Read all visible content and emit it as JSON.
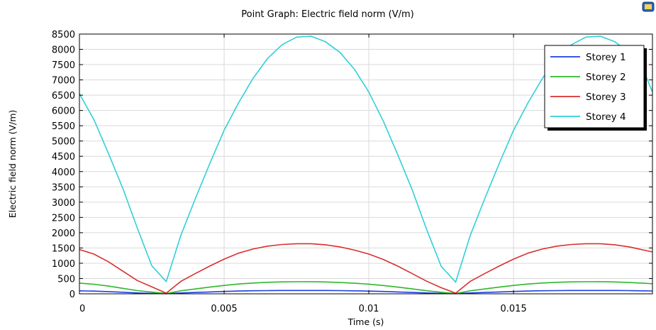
{
  "chart_data": {
    "type": "line",
    "title": "Point Graph: Electric field norm (V/m)",
    "xlabel": "Time (s)",
    "ylabel": "Electric field norm (V/m)",
    "xlim": [
      0,
      0.0198
    ],
    "ylim": [
      0,
      8500
    ],
    "xticks": [
      0,
      0.005,
      0.01,
      0.015
    ],
    "xtick_labels": [
      "0",
      "0.005",
      "0.01",
      "0.015"
    ],
    "yticks": [
      0,
      500,
      1000,
      1500,
      2000,
      2500,
      3000,
      3500,
      4000,
      4500,
      5000,
      5500,
      6000,
      6500,
      7000,
      7500,
      8000,
      8500
    ],
    "grid": true,
    "legend_position": "top-right",
    "x": [
      0,
      0.0005,
      0.001,
      0.0015,
      0.002,
      0.0025,
      0.003,
      0.0035,
      0.004,
      0.0045,
      0.005,
      0.0055,
      0.006,
      0.0065,
      0.007,
      0.0075,
      0.008,
      0.0085,
      0.009,
      0.0095,
      0.01,
      0.0105,
      0.011,
      0.0115,
      0.012,
      0.0125,
      0.013,
      0.0135,
      0.014,
      0.0145,
      0.015,
      0.0155,
      0.016,
      0.0165,
      0.017,
      0.0175,
      0.018,
      0.0185,
      0.019,
      0.0195,
      0.0198
    ],
    "series": [
      {
        "name": "Storey 1",
        "color": "#1f3fe0",
        "values": [
          98,
          88,
          71,
          50,
          29,
          15,
          5,
          27,
          44,
          61,
          77,
          90,
          99,
          105,
          109,
          110,
          110,
          108,
          104,
          97,
          88,
          76,
          61,
          45,
          28,
          14,
          5,
          27,
          44,
          61,
          77,
          90,
          99,
          105,
          109,
          110,
          110,
          108,
          104,
          97,
          92
        ]
      },
      {
        "name": "Storey 2",
        "color": "#2db82d",
        "values": [
          350,
          314,
          254,
          179,
          105,
          55,
          10,
          98,
          159,
          218,
          275,
          321,
          354,
          377,
          390,
          395,
          396,
          388,
          370,
          346,
          315,
          272,
          218,
          160,
          100,
          50,
          10,
          98,
          159,
          218,
          275,
          321,
          354,
          377,
          390,
          395,
          396,
          388,
          370,
          346,
          330
        ]
      },
      {
        "name": "Storey 3",
        "color": "#d93030",
        "values": [
          1450,
          1300,
          1050,
          740,
          435,
          230,
          20,
          405,
          660,
          905,
          1135,
          1330,
          1465,
          1560,
          1615,
          1640,
          1640,
          1605,
          1535,
          1430,
          1300,
          1125,
          905,
          660,
          410,
          200,
          20,
          405,
          660,
          905,
          1135,
          1330,
          1465,
          1560,
          1615,
          1640,
          1640,
          1605,
          1535,
          1430,
          1370
        ]
      },
      {
        "name": "Storey 4",
        "color": "#30d0d8",
        "values": [
          6550,
          5700,
          4600,
          3450,
          2150,
          920,
          400,
          1900,
          3100,
          4250,
          5350,
          6250,
          7050,
          7700,
          8150,
          8400,
          8430,
          8250,
          7900,
          7350,
          6600,
          5650,
          4550,
          3400,
          2100,
          900,
          380,
          1900,
          3100,
          4250,
          5350,
          6250,
          7050,
          7700,
          8150,
          8400,
          8430,
          8250,
          7900,
          7300,
          6600
        ]
      }
    ]
  }
}
